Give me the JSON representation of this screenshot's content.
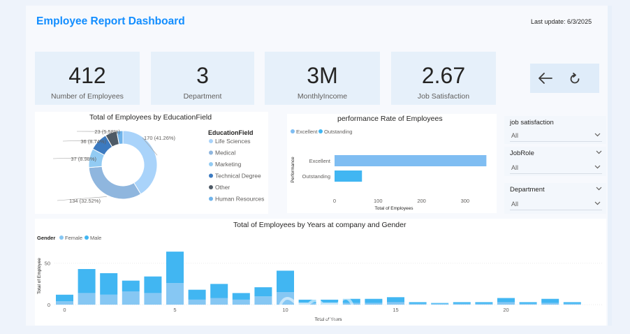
{
  "header": {
    "title": "Employee Report Dashboard",
    "last_update": "Last update: 6/3/2025"
  },
  "kpis": [
    {
      "value": "412",
      "label": "Number of Employees"
    },
    {
      "value": "3",
      "label": "Department"
    },
    {
      "value": "3M",
      "label": "MonthlyIncome"
    },
    {
      "value": "2.67",
      "label": "Job Satisfaction"
    }
  ],
  "nav": {
    "back_icon": "arrow-left-icon",
    "reset_icon": "reset-icon"
  },
  "slicers": [
    {
      "title": "job satisfaction",
      "value": "All"
    },
    {
      "title": "JobRole",
      "value": "All"
    },
    {
      "title": "Department",
      "value": "All"
    }
  ],
  "watermark": {
    "brand": "mostaql.com"
  },
  "chart_data": [
    {
      "type": "pie",
      "title": "Total of Employees by EducationField",
      "legend_title": "EducationField",
      "legend_position": "right",
      "slices": [
        {
          "name": "Life Sciences",
          "value": 170,
          "label": "170 (41.26%)",
          "color": "#a9d3fa"
        },
        {
          "name": "Medical",
          "value": 134,
          "label": "134 (32.52%)",
          "color": "#8fb6de"
        },
        {
          "name": "Marketing",
          "value": 37,
          "label": "37 (8.98%)",
          "color": "#92cbf3"
        },
        {
          "name": "Technical Degree",
          "value": 36,
          "label": "36 (8.74%)",
          "color": "#3c7ac0"
        },
        {
          "name": "Other",
          "value": 23,
          "label": "23 (5.58%)",
          "color": "#4e5a66"
        },
        {
          "name": "Human Resources",
          "value": 12,
          "label": "",
          "color": "#6fb3ea"
        }
      ]
    },
    {
      "type": "bar",
      "orientation": "horizontal",
      "title": "performance Rate of Employees",
      "legend_position": "top-left",
      "categories": [
        "Excellent",
        "Outstanding"
      ],
      "series": [
        {
          "name": "Excellent",
          "values": [
            349,
            0
          ],
          "color": "#7fbdf2"
        },
        {
          "name": "Outstanding",
          "values": [
            0,
            63
          ],
          "color": "#41b6f2"
        }
      ],
      "xlabel": "Total of Employees",
      "ylabel": "Performance",
      "xlim": [
        0,
        350
      ],
      "xticks": [
        0,
        100,
        200,
        300
      ]
    },
    {
      "type": "bar",
      "stacked": true,
      "title": "Total of Employees by Years at company and Gender",
      "legend_title": "Gender",
      "legend_position": "top-left",
      "x": [
        0,
        1,
        2,
        3,
        4,
        5,
        6,
        7,
        8,
        9,
        10,
        11,
        12,
        13,
        14,
        15,
        16,
        17,
        18,
        19,
        20,
        21,
        22,
        23
      ],
      "series": [
        {
          "name": "Female",
          "color": "#86c7f3",
          "values": [
            4,
            14,
            12,
            16,
            14,
            26,
            6,
            8,
            6,
            10,
            15,
            2,
            2,
            2,
            2,
            3,
            1,
            1,
            1,
            1,
            3,
            1,
            2,
            1
          ]
        },
        {
          "name": "Male",
          "color": "#41b6f2",
          "values": [
            8,
            29,
            26,
            13,
            20,
            38,
            12,
            17,
            8,
            11,
            26,
            4,
            4,
            5,
            5,
            6,
            2,
            1,
            2,
            2,
            5,
            2,
            5,
            2
          ]
        }
      ],
      "xlabel": "Total of Years",
      "ylabel": "Total of Employee",
      "ylim": [
        0,
        70
      ],
      "yticks": [
        0,
        50
      ],
      "xticks": [
        0,
        5,
        10,
        15,
        20
      ],
      "grid": true
    }
  ]
}
